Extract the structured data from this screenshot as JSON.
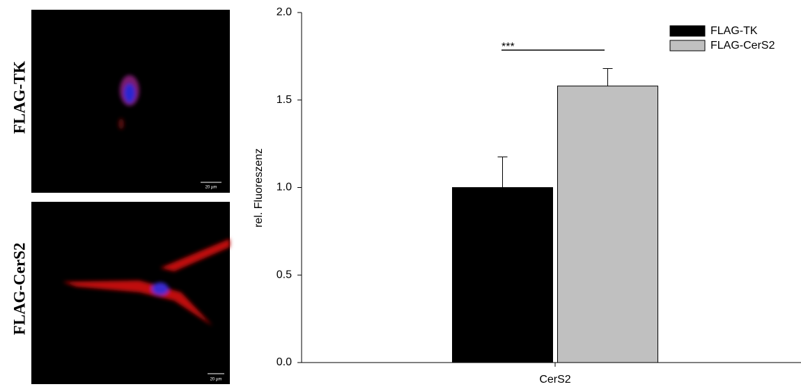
{
  "panels": [
    {
      "label": "FLAG-TK",
      "scale_bar": "20 µm"
    },
    {
      "label": "FLAG-CerS2",
      "scale_bar": "20 µm"
    }
  ],
  "chart_data": {
    "type": "bar",
    "y_label": "rel. Fluoreszenz",
    "categories": [
      "CerS2"
    ],
    "series": [
      {
        "name": "FLAG-TK",
        "color": "#000000",
        "values": [
          1.0
        ],
        "errors": [
          0.175
        ]
      },
      {
        "name": "FLAG-CerS2",
        "color": "#c0c0c0",
        "values": [
          1.58
        ],
        "errors": [
          0.1
        ]
      }
    ],
    "ylim": [
      0,
      2
    ],
    "yticks": [
      {
        "value": 0,
        "label": "0.0"
      },
      0.5,
      {
        "value": 1,
        "label": "1.0"
      },
      1.5,
      {
        "value": 2,
        "label": "2.0"
      }
    ],
    "annotation": "***",
    "legend": "upper right"
  }
}
